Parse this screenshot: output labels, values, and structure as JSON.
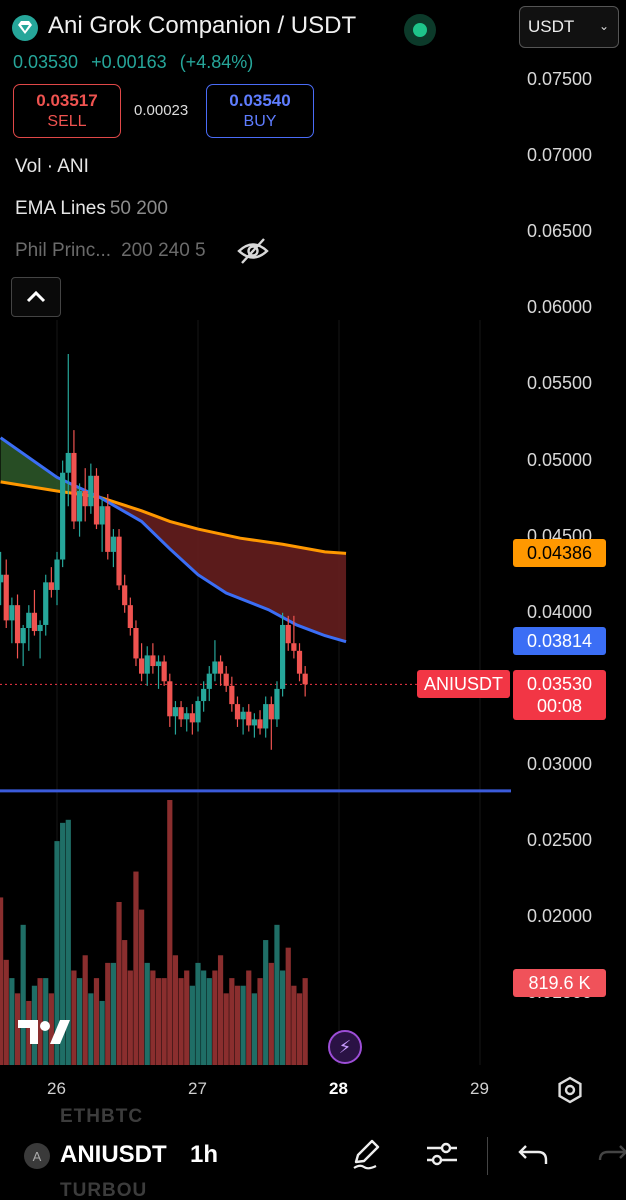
{
  "header": {
    "title": "Ani Grok Companion / USDT",
    "currency": "USDT",
    "last_price": "0.03530",
    "change": "+0.00163",
    "change_pct": "(+4.84%)"
  },
  "trade": {
    "sell_price": "0.03517",
    "sell_label": "SELL",
    "spread": "0.00023",
    "buy_price": "0.03540",
    "buy_label": "BUY"
  },
  "indicators": {
    "vol": "Vol · ANI",
    "ema_name": "EMA Lines",
    "ema_params": "50 200",
    "phil_name": "Phil Princ...",
    "phil_params": "200 240 5"
  },
  "price_axis": [
    "0.07500",
    "0.07000",
    "0.06500",
    "0.06000",
    "0.05500",
    "0.05000",
    "0.04500",
    "0.04000",
    "0.03500",
    "0.03000",
    "0.02500",
    "0.02000",
    "0.01500"
  ],
  "tags": {
    "ema200": "0.04386",
    "ema50": "0.03814",
    "symbol": "ANIUSDT",
    "last": "0.03530",
    "countdown": "00:08",
    "volume": "819.6 K"
  },
  "time_axis": [
    "26",
    "27",
    "28",
    "29"
  ],
  "toolbar": {
    "badge": "A",
    "symbol": "ANIUSDT",
    "interval": "1h",
    "ghost_top": "ETHBTC",
    "ghost_bottom": "TURBOU"
  },
  "colors": {
    "up": "#26a69a",
    "down": "#ef5350",
    "ema50": "#3b6ef5",
    "ema200": "#ff9800"
  },
  "chart_data": {
    "type": "candlestick",
    "xlabel": "",
    "ylabel": "",
    "ylim": [
      0.015,
      0.0775
    ],
    "horizontal_line": 0.0283,
    "ema50": [
      [
        25.6,
        0.0515
      ],
      [
        26.0,
        0.0489
      ],
      [
        26.3,
        0.0476
      ],
      [
        26.6,
        0.046
      ],
      [
        26.8,
        0.0442
      ],
      [
        27.0,
        0.0425
      ],
      [
        27.2,
        0.0413
      ],
      [
        27.5,
        0.0402
      ],
      [
        27.7,
        0.0392
      ],
      [
        27.9,
        0.0385
      ],
      [
        28.05,
        0.0381
      ]
    ],
    "ema200": [
      [
        25.6,
        0.0486
      ],
      [
        26.0,
        0.048
      ],
      [
        26.3,
        0.0476
      ],
      [
        26.6,
        0.0467
      ],
      [
        26.8,
        0.046
      ],
      [
        27.0,
        0.0455
      ],
      [
        27.3,
        0.0449
      ],
      [
        27.6,
        0.0445
      ],
      [
        27.9,
        0.044
      ],
      [
        28.05,
        0.0439
      ]
    ],
    "candles": [
      [
        25.6,
        0.042,
        0.044,
        0.0405,
        0.0425
      ],
      [
        25.64,
        0.0425,
        0.0435,
        0.039,
        0.0395
      ],
      [
        25.68,
        0.0395,
        0.041,
        0.038,
        0.0405
      ],
      [
        25.72,
        0.0405,
        0.0412,
        0.037,
        0.038
      ],
      [
        25.76,
        0.038,
        0.0392,
        0.0365,
        0.039
      ],
      [
        25.8,
        0.039,
        0.0405,
        0.0375,
        0.04
      ],
      [
        25.84,
        0.04,
        0.0415,
        0.0385,
        0.0388
      ],
      [
        25.88,
        0.0388,
        0.0395,
        0.037,
        0.0392
      ],
      [
        25.92,
        0.0392,
        0.0425,
        0.0385,
        0.042
      ],
      [
        25.96,
        0.042,
        0.043,
        0.041,
        0.0415
      ],
      [
        26.0,
        0.0415,
        0.044,
        0.0405,
        0.0435
      ],
      [
        26.04,
        0.0435,
        0.05,
        0.043,
        0.0492
      ],
      [
        26.08,
        0.0492,
        0.057,
        0.047,
        0.0505
      ],
      [
        26.12,
        0.0505,
        0.052,
        0.0455,
        0.046
      ],
      [
        26.16,
        0.046,
        0.0485,
        0.045,
        0.048
      ],
      [
        26.2,
        0.048,
        0.0495,
        0.046,
        0.047
      ],
      [
        26.24,
        0.047,
        0.0498,
        0.0465,
        0.049
      ],
      [
        26.28,
        0.049,
        0.0495,
        0.0455,
        0.0458
      ],
      [
        26.32,
        0.0458,
        0.0475,
        0.044,
        0.047
      ],
      [
        26.36,
        0.047,
        0.0478,
        0.0435,
        0.044
      ],
      [
        26.4,
        0.044,
        0.0455,
        0.043,
        0.045
      ],
      [
        26.44,
        0.045,
        0.0455,
        0.0415,
        0.0418
      ],
      [
        26.48,
        0.0418,
        0.0425,
        0.04,
        0.0405
      ],
      [
        26.52,
        0.0405,
        0.041,
        0.0385,
        0.039
      ],
      [
        26.56,
        0.039,
        0.0395,
        0.0365,
        0.037
      ],
      [
        26.6,
        0.037,
        0.038,
        0.0355,
        0.036
      ],
      [
        26.64,
        0.036,
        0.0378,
        0.0352,
        0.0372
      ],
      [
        26.68,
        0.0372,
        0.038,
        0.036,
        0.0365
      ],
      [
        26.72,
        0.0365,
        0.0372,
        0.035,
        0.0368
      ],
      [
        26.76,
        0.0368,
        0.0372,
        0.0352,
        0.0355
      ],
      [
        26.8,
        0.0355,
        0.036,
        0.0325,
        0.0332
      ],
      [
        26.84,
        0.0332,
        0.0342,
        0.032,
        0.0338
      ],
      [
        26.88,
        0.0338,
        0.0342,
        0.0325,
        0.033
      ],
      [
        26.92,
        0.033,
        0.0338,
        0.0322,
        0.0334
      ],
      [
        26.96,
        0.0334,
        0.034,
        0.032,
        0.0328
      ],
      [
        27.0,
        0.0328,
        0.0345,
        0.0322,
        0.0342
      ],
      [
        27.04,
        0.0342,
        0.0355,
        0.0335,
        0.035
      ],
      [
        27.08,
        0.035,
        0.0365,
        0.0342,
        0.036
      ],
      [
        27.12,
        0.036,
        0.0382,
        0.0355,
        0.0368
      ],
      [
        27.16,
        0.0368,
        0.0372,
        0.0352,
        0.036
      ],
      [
        27.2,
        0.036,
        0.0365,
        0.0348,
        0.0352
      ],
      [
        27.24,
        0.0352,
        0.0358,
        0.0335,
        0.034
      ],
      [
        27.28,
        0.034,
        0.0345,
        0.0325,
        0.033
      ],
      [
        27.32,
        0.033,
        0.0338,
        0.032,
        0.0335
      ],
      [
        27.36,
        0.0335,
        0.034,
        0.0322,
        0.0326
      ],
      [
        27.4,
        0.0326,
        0.0334,
        0.0318,
        0.033
      ],
      [
        27.44,
        0.033,
        0.0336,
        0.032,
        0.0324
      ],
      [
        27.48,
        0.0324,
        0.0345,
        0.0318,
        0.034
      ],
      [
        27.52,
        0.034,
        0.0345,
        0.031,
        0.033
      ],
      [
        27.56,
        0.033,
        0.0355,
        0.0325,
        0.035
      ],
      [
        27.6,
        0.035,
        0.04,
        0.0345,
        0.0392
      ],
      [
        27.64,
        0.0392,
        0.0398,
        0.0375,
        0.038
      ],
      [
        27.68,
        0.038,
        0.0398,
        0.037,
        0.0375
      ],
      [
        27.72,
        0.0375,
        0.038,
        0.0355,
        0.036
      ],
      [
        27.76,
        0.036,
        0.0365,
        0.0345,
        0.0353
      ]
    ],
    "volume": [
      [
        25.6,
        "down",
        0.0213
      ],
      [
        25.64,
        "down",
        0.0172
      ],
      [
        25.68,
        "up",
        0.016
      ],
      [
        25.72,
        "down",
        0.015
      ],
      [
        25.76,
        "up",
        0.0195
      ],
      [
        25.8,
        "down",
        0.0145
      ],
      [
        25.84,
        "up",
        0.0155
      ],
      [
        25.88,
        "down",
        0.016
      ],
      [
        25.92,
        "up",
        0.016
      ],
      [
        25.96,
        "down",
        0.015
      ],
      [
        26.0,
        "up",
        0.025
      ],
      [
        26.04,
        "up",
        0.0262
      ],
      [
        26.08,
        "up",
        0.0264
      ],
      [
        26.12,
        "down",
        0.0165
      ],
      [
        26.16,
        "up",
        0.016
      ],
      [
        26.2,
        "down",
        0.0175
      ],
      [
        26.24,
        "up",
        0.015
      ],
      [
        26.28,
        "down",
        0.016
      ],
      [
        26.32,
        "up",
        0.0145
      ],
      [
        26.36,
        "down",
        0.017
      ],
      [
        26.4,
        "up",
        0.017
      ],
      [
        26.44,
        "down",
        0.021
      ],
      [
        26.48,
        "down",
        0.0185
      ],
      [
        26.52,
        "down",
        0.0165
      ],
      [
        26.56,
        "down",
        0.023
      ],
      [
        26.6,
        "down",
        0.0205
      ],
      [
        26.64,
        "up",
        0.017
      ],
      [
        26.68,
        "down",
        0.0165
      ],
      [
        26.72,
        "down",
        0.016
      ],
      [
        26.76,
        "down",
        0.016
      ],
      [
        26.8,
        "down",
        0.0277
      ],
      [
        26.84,
        "down",
        0.0175
      ],
      [
        26.88,
        "down",
        0.016
      ],
      [
        26.92,
        "down",
        0.0165
      ],
      [
        26.96,
        "up",
        0.0155
      ],
      [
        27.0,
        "up",
        0.017
      ],
      [
        27.04,
        "up",
        0.0165
      ],
      [
        27.08,
        "up",
        0.016
      ],
      [
        27.12,
        "down",
        0.0165
      ],
      [
        27.16,
        "down",
        0.0175
      ],
      [
        27.2,
        "down",
        0.015
      ],
      [
        27.24,
        "down",
        0.016
      ],
      [
        27.28,
        "down",
        0.0155
      ],
      [
        27.32,
        "up",
        0.0155
      ],
      [
        27.36,
        "down",
        0.0165
      ],
      [
        27.4,
        "up",
        0.015
      ],
      [
        27.44,
        "down",
        0.016
      ],
      [
        27.48,
        "up",
        0.0185
      ],
      [
        27.52,
        "down",
        0.017
      ],
      [
        27.56,
        "up",
        0.0195
      ],
      [
        27.6,
        "up",
        0.0165
      ],
      [
        27.64,
        "down",
        0.018
      ],
      [
        27.68,
        "down",
        0.0155
      ],
      [
        27.72,
        "down",
        0.015
      ],
      [
        27.76,
        "down",
        0.016
      ]
    ]
  }
}
